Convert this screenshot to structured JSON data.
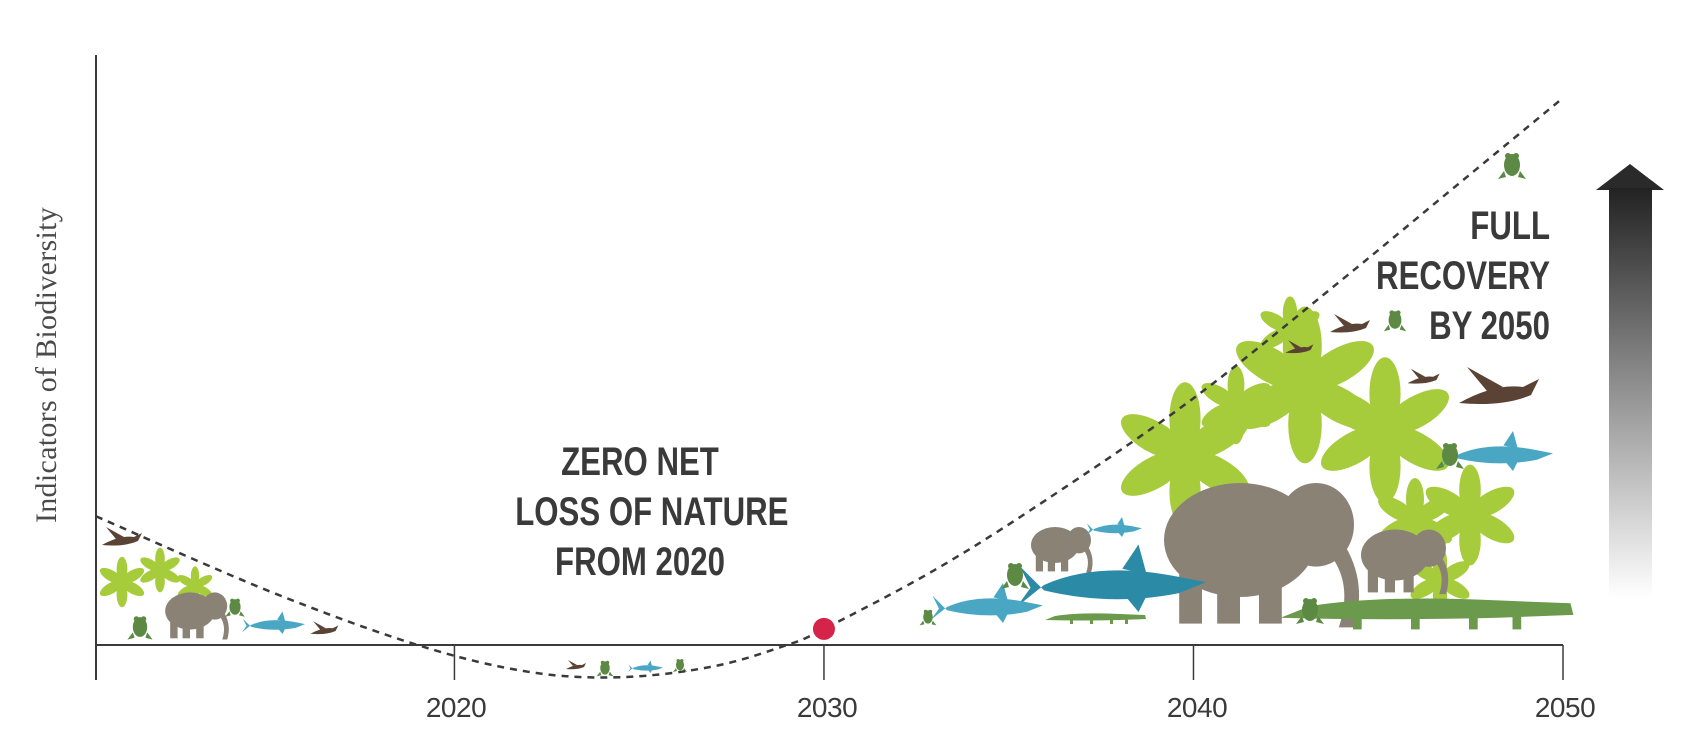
{
  "chart_data": {
    "type": "line",
    "ylabel": "Indicators of Biodiversity",
    "xlabel": "",
    "x_ticks": [
      "2020",
      "2030",
      "2040",
      "2050"
    ],
    "xlim": [
      2010.3,
      2050
    ],
    "series": [
      {
        "style": "dashed",
        "x": [
          2010.3,
          2015,
          2019,
          2022,
          2024.5,
          2027,
          2029,
          2030,
          2033,
          2036,
          2040,
          2044,
          2047,
          2050
        ],
        "y": [
          0.24,
          0.1,
          0.0,
          -0.05,
          -0.06,
          -0.04,
          0.0,
          0.03,
          0.14,
          0.27,
          0.46,
          0.68,
          0.85,
          1.02
        ]
      }
    ],
    "highlight_point": {
      "x": 2030,
      "y": 0.03,
      "color": "#d6234a"
    },
    "ylim": [
      -0.12,
      1.1
    ],
    "annotations": [
      {
        "id": "zero",
        "lines": [
          "ZERO NET",
          "LOSS OF NATURE",
          "FROM 2020"
        ]
      },
      {
        "id": "full",
        "lines": [
          "FULL",
          "RECOVERY",
          "BY 2050"
        ]
      }
    ],
    "colors": {
      "axis": "#3a3a3a",
      "curve": "#3a3a3a",
      "elephant": "#8b8276",
      "leaf": "#a6cc3c",
      "shark_dark": "#1f7f98",
      "shark_light": "#6cc0d8",
      "crocodile": "#6c9a4c",
      "frog": "#5c8a44",
      "bird": "#5a4234",
      "arrow_dark": "#222222"
    }
  }
}
